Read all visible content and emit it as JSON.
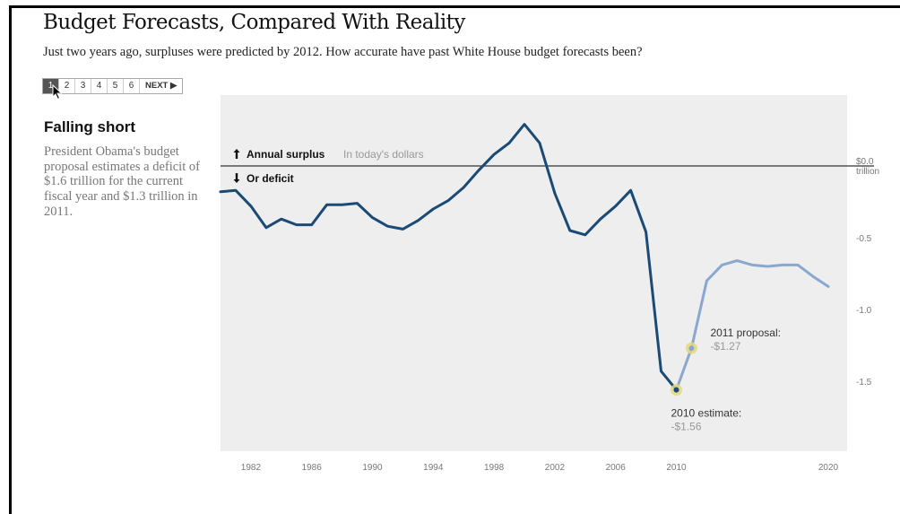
{
  "header": {
    "title": "Budget Forecasts, Compared With Reality",
    "subtitle": "Just two years ago, surpluses were predicted by 2012. How accurate have past White House budget forecasts been?"
  },
  "pager": {
    "pages": [
      "1",
      "2",
      "3",
      "4",
      "5",
      "6"
    ],
    "active": "1",
    "next_label": "NEXT"
  },
  "sidebar": {
    "heading": "Falling short",
    "text": "President Obama's budget proposal estimates a deficit of $1.6 trillion for the current fiscal year and $1.3 trillion in 2011."
  },
  "colors": {
    "actual": "#1b4a76",
    "forecast": "#8aa8cf",
    "plot_bg": "#eeeeee",
    "highlight": "#e5d77a"
  },
  "chart_data": {
    "type": "line",
    "ylim": [
      -1.95,
      0.3
    ],
    "xlim": [
      1980,
      2021
    ],
    "x_ticks": [
      1982,
      1986,
      1990,
      1994,
      1998,
      2002,
      2006,
      2010,
      2020
    ],
    "y_ticks": [
      {
        "value": 0,
        "label": "$0.0",
        "label2": "trillion"
      },
      {
        "value": -0.5,
        "label": "-0.5"
      },
      {
        "value": -1.0,
        "label": "-1.0"
      },
      {
        "value": -1.5,
        "label": "-1.5"
      }
    ],
    "surplus_label": "Annual surplus",
    "surplus_note": "In today's dollars",
    "deficit_label": "Or deficit",
    "series": [
      {
        "role": "actual",
        "x": [
          1980,
          1981,
          1982,
          1983,
          1984,
          1985,
          1986,
          1987,
          1988,
          1989,
          1990,
          1991,
          1992,
          1993,
          1994,
          1995,
          1996,
          1997,
          1998,
          1999,
          2000,
          2001,
          2002,
          2003,
          2004,
          2005,
          2006,
          2007,
          2008,
          2009,
          2010
        ],
        "y": [
          -0.18,
          -0.17,
          -0.28,
          -0.43,
          -0.37,
          -0.41,
          -0.41,
          -0.27,
          -0.27,
          -0.26,
          -0.36,
          -0.42,
          -0.44,
          -0.38,
          -0.3,
          -0.24,
          -0.15,
          -0.03,
          0.08,
          0.16,
          0.29,
          0.16,
          -0.19,
          -0.45,
          -0.48,
          -0.37,
          -0.28,
          -0.17,
          -0.46,
          -1.43,
          -1.56
        ]
      },
      {
        "role": "forecast",
        "x": [
          2010,
          2011,
          2012,
          2013,
          2014,
          2015,
          2016,
          2017,
          2018,
          2019,
          2020
        ],
        "y": [
          -1.56,
          -1.27,
          -0.8,
          -0.69,
          -0.66,
          -0.69,
          -0.7,
          -0.69,
          -0.69,
          -0.77,
          -0.84
        ]
      }
    ],
    "annotations": [
      {
        "x": 2011,
        "y": -1.27,
        "label": "2011 proposal:",
        "value": "-$1.27"
      },
      {
        "x": 2010,
        "y": -1.56,
        "label": "2010 estimate:",
        "value": "-$1.56"
      }
    ]
  }
}
